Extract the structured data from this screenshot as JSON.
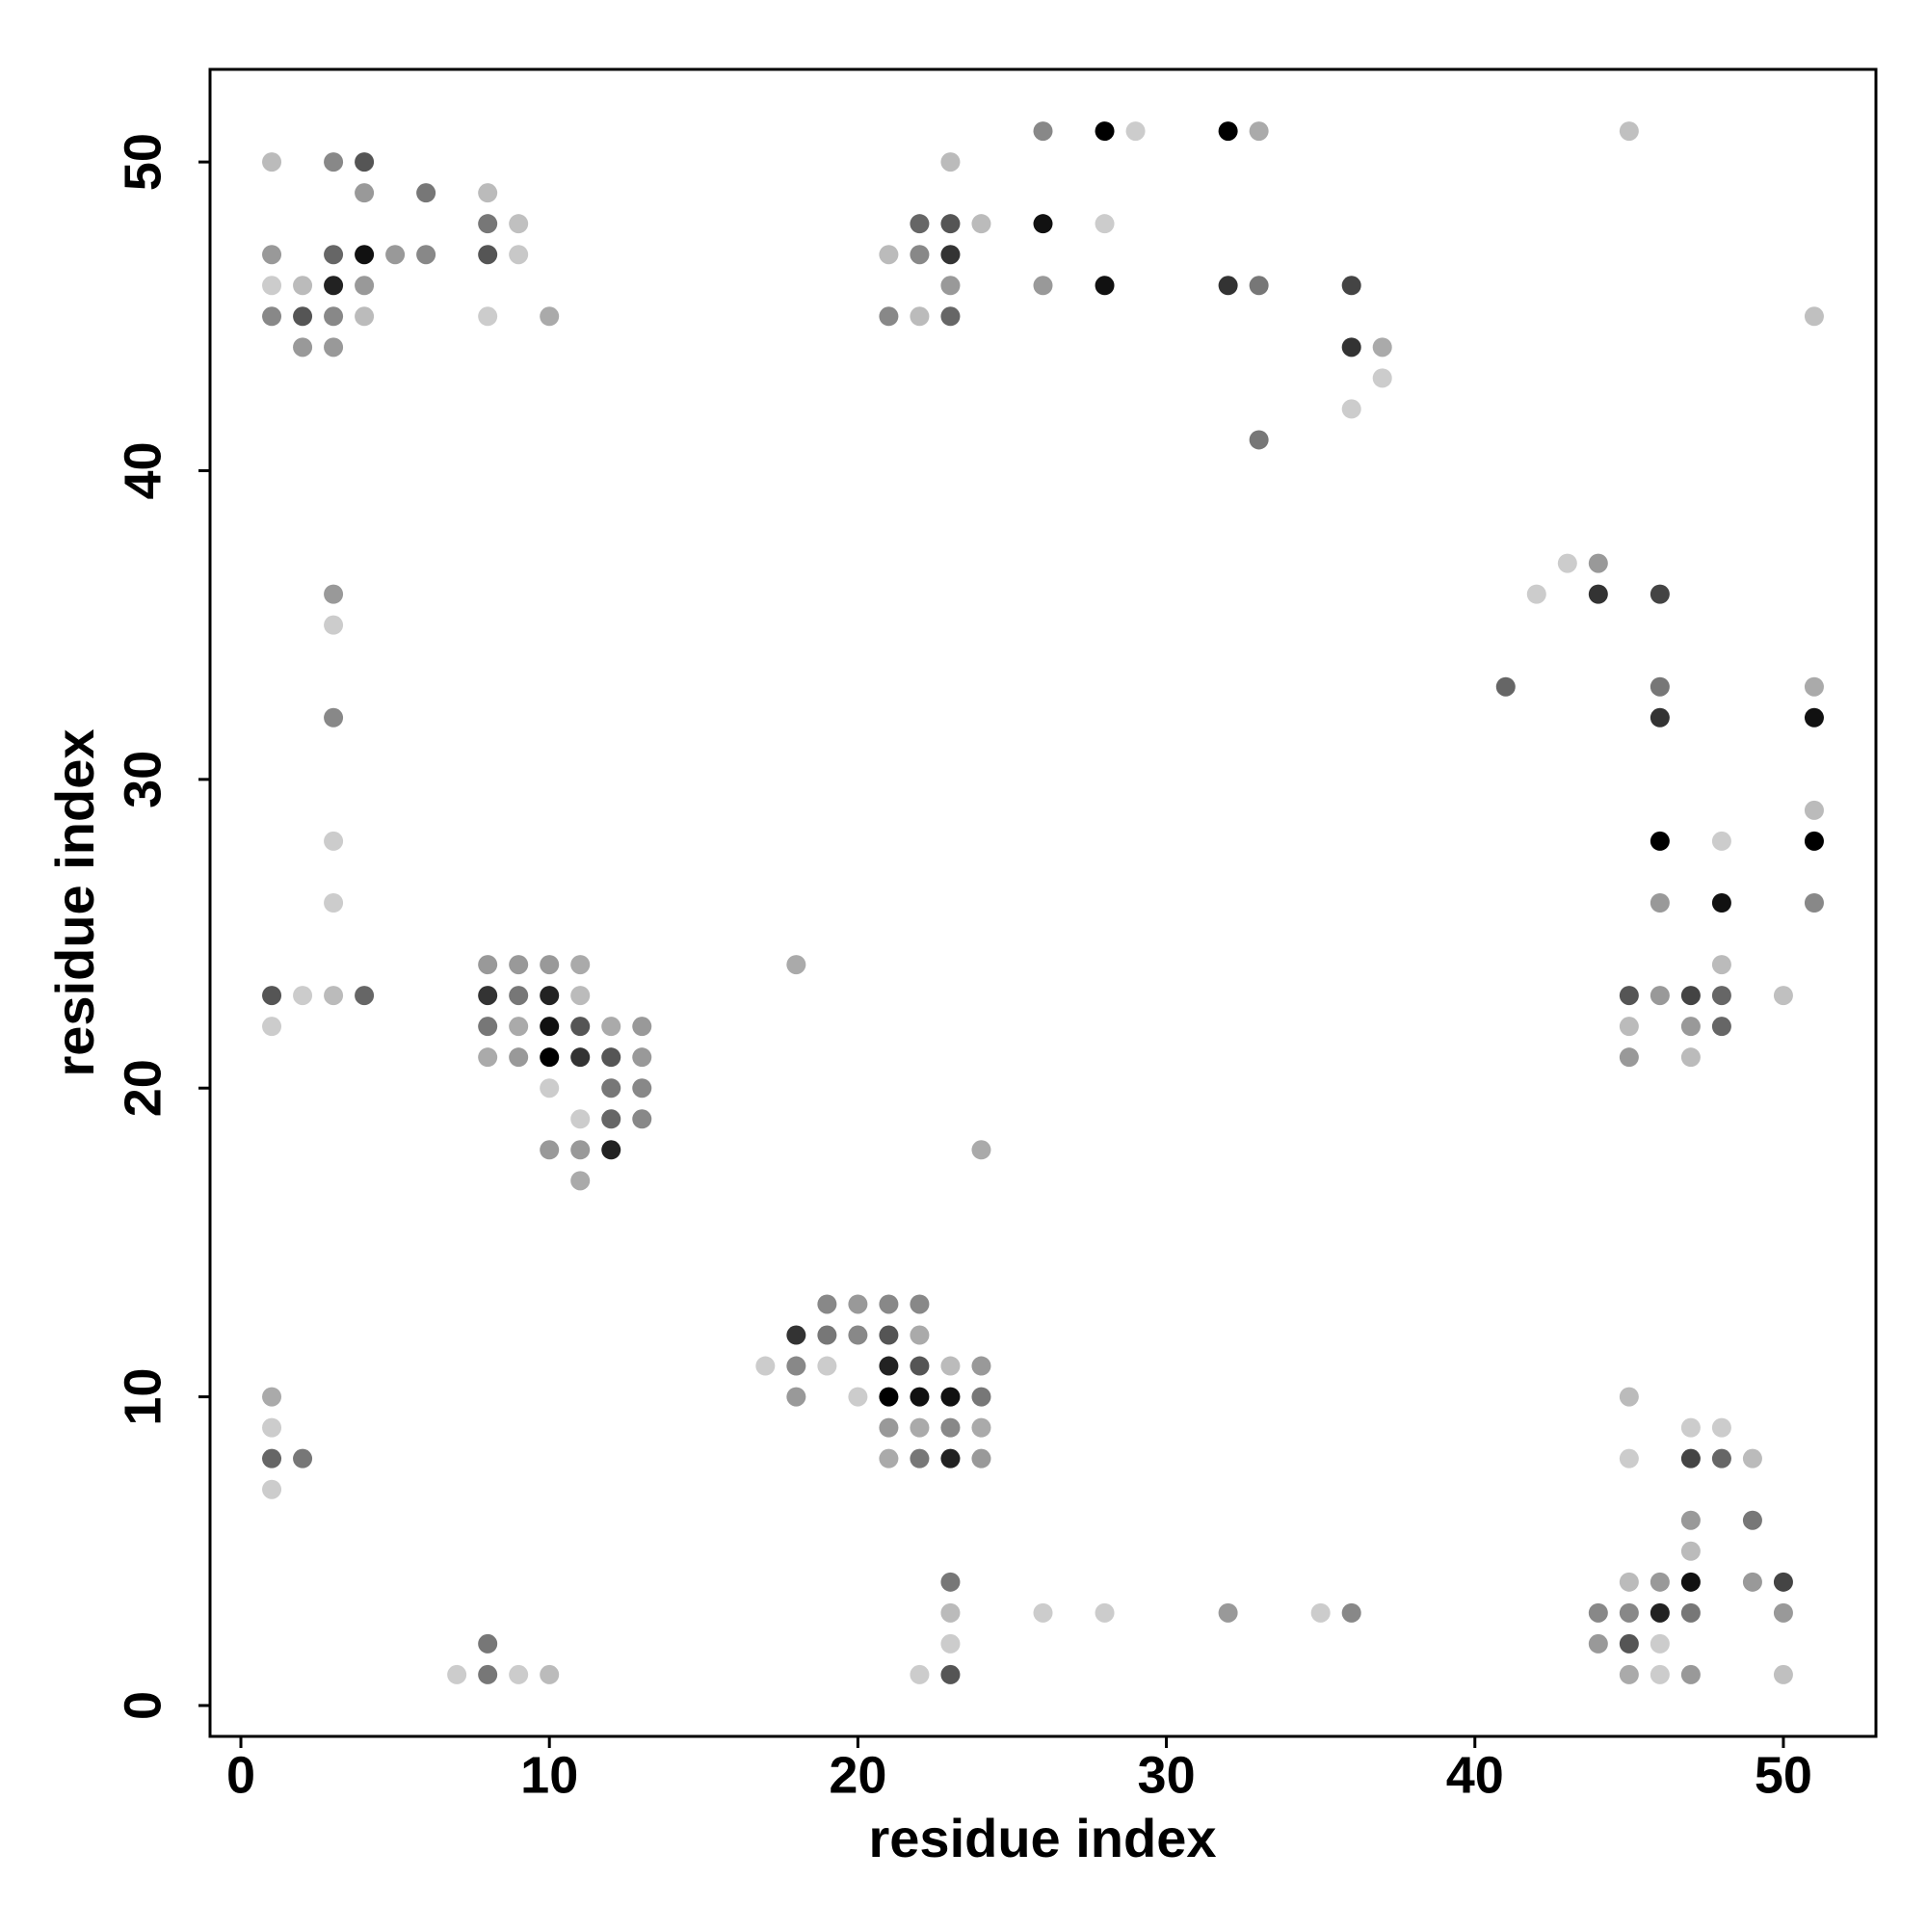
{
  "chart_data": {
    "type": "scatter",
    "x_label": "residue index",
    "y_label": "residue index",
    "xlim": [
      -1,
      53
    ],
    "ylim": [
      -1,
      53
    ],
    "xticks": [
      0,
      10,
      20,
      30,
      40,
      50
    ],
    "yticks": [
      0,
      10,
      20,
      30,
      40,
      50
    ],
    "series": [
      {
        "x": [
          26,
          28,
          29,
          32,
          33,
          45,
          1,
          3,
          4,
          23,
          4,
          6,
          8,
          8,
          9,
          22,
          23,
          24,
          26,
          28,
          1,
          3,
          4,
          5,
          6,
          8,
          9,
          21,
          22,
          23,
          1,
          2,
          3,
          4,
          23,
          26,
          28,
          32,
          33,
          36,
          1,
          2,
          3,
          4,
          8,
          10,
          21,
          22,
          23,
          51,
          2,
          3,
          36,
          37,
          37,
          36,
          33,
          43,
          44,
          3,
          42,
          44,
          46,
          3,
          41,
          46,
          51,
          3,
          46,
          51,
          51,
          3,
          46,
          48,
          51,
          3,
          46,
          48,
          51,
          8,
          9,
          10,
          11,
          18,
          48,
          1,
          2,
          3,
          4,
          8,
          9,
          10,
          11,
          45,
          46,
          47,
          48,
          50,
          1,
          8,
          9,
          10,
          11,
          12,
          13,
          45,
          47,
          48,
          8,
          9,
          10,
          11,
          12,
          13,
          45,
          47,
          10,
          12,
          13,
          11,
          12,
          13,
          10,
          11,
          12,
          24,
          11,
          19,
          20,
          21,
          22,
          18,
          19,
          20,
          21,
          22,
          17,
          18,
          19,
          21,
          22,
          23,
          24,
          1,
          18,
          20,
          21,
          22,
          23,
          24,
          45,
          1,
          21,
          22,
          23,
          24,
          47,
          48,
          1,
          2,
          21,
          22,
          23,
          24,
          45,
          47,
          48,
          49,
          1,
          47,
          49,
          47,
          23,
          45,
          46,
          47,
          49,
          50,
          23,
          26,
          28,
          32,
          35,
          36,
          44,
          45,
          46,
          47,
          50,
          8,
          23,
          44,
          45,
          46,
          7,
          8,
          9,
          10,
          22,
          23,
          45,
          46,
          47,
          50
        ],
        "values": [
          51,
          51,
          51,
          51,
          51,
          51,
          50,
          50,
          50,
          50,
          49,
          49,
          49,
          48,
          48,
          48,
          48,
          48,
          48,
          48,
          47,
          47,
          47,
          47,
          47,
          47,
          47,
          47,
          47,
          47,
          46,
          46,
          46,
          46,
          46,
          46,
          46,
          46,
          46,
          46,
          45,
          45,
          45,
          45,
          45,
          45,
          45,
          45,
          45,
          45,
          44,
          44,
          44,
          44,
          43,
          42,
          41,
          37,
          37,
          36,
          36,
          36,
          36,
          35,
          33,
          33,
          33,
          32,
          32,
          32,
          29,
          28,
          28,
          28,
          28,
          26,
          26,
          26,
          26,
          24,
          24,
          24,
          24,
          24,
          24,
          23,
          23,
          23,
          23,
          23,
          23,
          23,
          23,
          23,
          23,
          23,
          23,
          23,
          22,
          22,
          22,
          22,
          22,
          22,
          22,
          22,
          22,
          22,
          21,
          21,
          21,
          21,
          21,
          21,
          21,
          21,
          20,
          20,
          20,
          19,
          19,
          19,
          18,
          18,
          18,
          18,
          17,
          13,
          13,
          13,
          13,
          12,
          12,
          12,
          12,
          12,
          11,
          11,
          11,
          11,
          11,
          11,
          11,
          10,
          10,
          10,
          10,
          10,
          10,
          10,
          10,
          9,
          9,
          9,
          9,
          9,
          9,
          9,
          8,
          8,
          8,
          8,
          8,
          8,
          8,
          8,
          8,
          8,
          7,
          6,
          6,
          5,
          4,
          4,
          4,
          4,
          4,
          4,
          3,
          3,
          3,
          3,
          3,
          3,
          3,
          3,
          3,
          3,
          3,
          2,
          2,
          2,
          2,
          2,
          1,
          1,
          1,
          1,
          1,
          1,
          1,
          1,
          1,
          1
        ],
        "colors": [
          "#888",
          "#000",
          "#ccc",
          "#000",
          "#aaa",
          "#c0c0c0",
          "#bbb",
          "#888",
          "#555",
          "#bbb",
          "#999",
          "#777",
          "#bbb",
          "#777",
          "#c0c0c0",
          "#666",
          "#555",
          "#bbb",
          "#111",
          "#ccc",
          "#999",
          "#666",
          "#111",
          "#999",
          "#888",
          "#555",
          "#c8c8c8",
          "#bbb",
          "#888",
          "#333",
          "#ccc",
          "#bbb",
          "#222",
          "#999",
          "#999",
          "#999",
          "#111",
          "#333",
          "#777",
          "#444",
          "#888",
          "#555",
          "#888",
          "#bbb",
          "#ccc",
          "#aaa",
          "#888",
          "#bbb",
          "#666",
          "#c0c0c0",
          "#999",
          "#999",
          "#333",
          "#aaa",
          "#ccc",
          "#ccc",
          "#777",
          "#ccc",
          "#999",
          "#999",
          "#ccc",
          "#333",
          "#444",
          "#ccc",
          "#666",
          "#777",
          "#aaa",
          "#888",
          "#333",
          "#111",
          "#bbb",
          "#ccc",
          "#000",
          "#ccc",
          "#000",
          "#ccc",
          "#999",
          "#111",
          "#888",
          "#999",
          "#999",
          "#999",
          "#aaa",
          "#aaa",
          "#bbb",
          "#555",
          "#ccc",
          "#bbb",
          "#666",
          "#333",
          "#777",
          "#222",
          "#bbb",
          "#555",
          "#999",
          "#444",
          "#666",
          "#c0c0c0",
          "#ccc",
          "#777",
          "#aaa",
          "#111",
          "#555",
          "#aaa",
          "#999",
          "#bbb",
          "#999",
          "#666",
          "#aaa",
          "#999",
          "#000",
          "#333",
          "#555",
          "#999",
          "#999",
          "#bbb",
          "#ccc",
          "#777",
          "#888",
          "#ccc",
          "#666",
          "#888",
          "#999",
          "#999",
          "#222",
          "#aaa",
          "#aaa",
          "#888",
          "#999",
          "#888",
          "#888",
          "#333",
          "#777",
          "#888",
          "#555",
          "#aaa",
          "#ccc",
          "#888",
          "#ccc",
          "#222",
          "#555",
          "#bbb",
          "#999",
          "#aaa",
          "#999",
          "#ccc",
          "#000",
          "#111",
          "#111",
          "#777",
          "#bbb",
          "#ccc",
          "#999",
          "#aaa",
          "#888",
          "#aaa",
          "#ccc",
          "#ccc",
          "#666",
          "#777",
          "#aaa",
          "#777",
          "#222",
          "#999",
          "#ccc",
          "#444",
          "#666",
          "#bbb",
          "#ccc",
          "#999",
          "#777",
          "#bbb",
          "#777",
          "#bbb",
          "#999",
          "#111",
          "#999",
          "#444",
          "#bbb",
          "#ccc",
          "#ccc",
          "#999",
          "#ccc",
          "#888",
          "#888",
          "#888",
          "#222",
          "#777",
          "#999",
          "#777",
          "#ccc",
          "#999",
          "#555",
          "#ccc",
          "#ccc",
          "#777",
          "#ccc",
          "#bbb",
          "#ccc",
          "#555",
          "#aaa",
          "#ccc",
          "#999",
          "#c0c0c0"
        ]
      }
    ]
  }
}
